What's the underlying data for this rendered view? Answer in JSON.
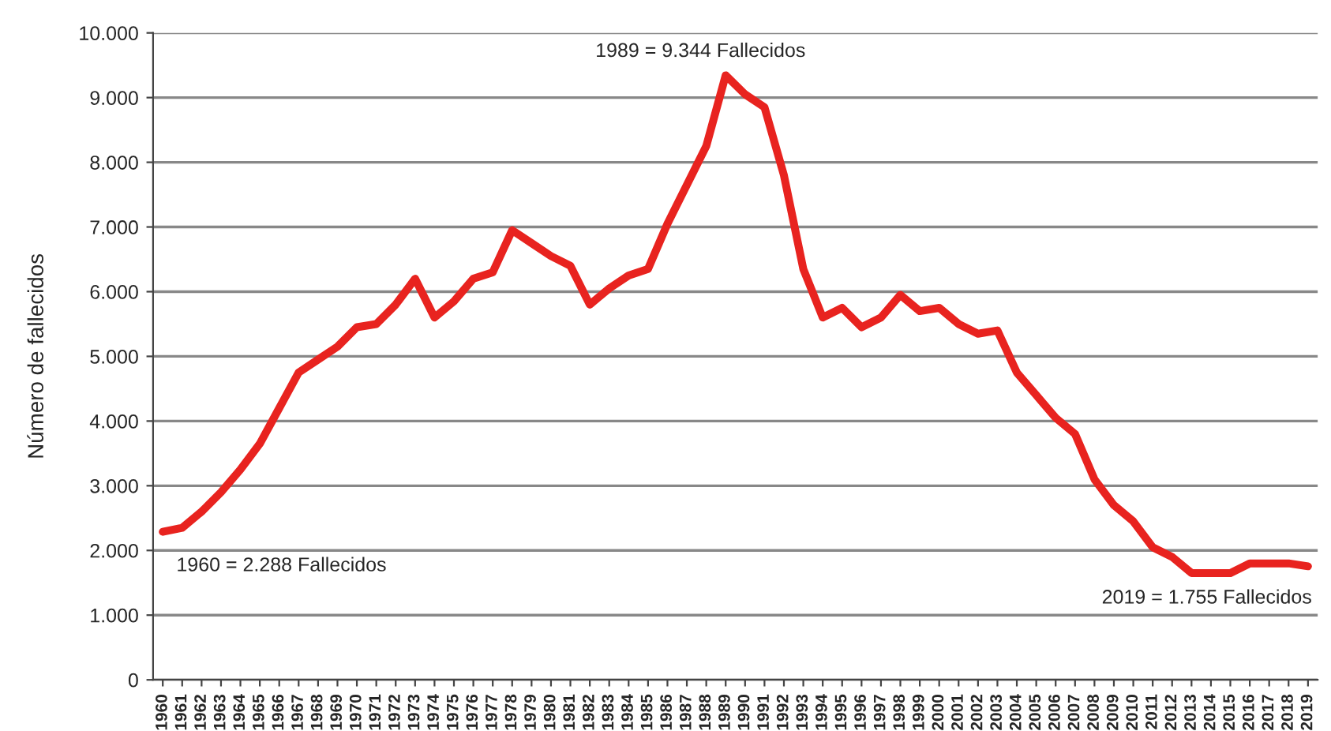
{
  "chart_data": {
    "type": "line",
    "ylabel": "Número de fallecidos",
    "categories": [
      "1960",
      "1961",
      "1962",
      "1963",
      "1964",
      "1965",
      "1966",
      "1967",
      "1968",
      "1969",
      "1970",
      "1971",
      "1972",
      "1973",
      "1974",
      "1975",
      "1976",
      "1977",
      "1978",
      "1979",
      "1980",
      "1981",
      "1982",
      "1983",
      "1984",
      "1985",
      "1986",
      "1987",
      "1988",
      "1989",
      "1990",
      "1991",
      "1992",
      "1993",
      "1994",
      "1995",
      "1996",
      "1997",
      "1998",
      "1999",
      "2000",
      "2001",
      "2002",
      "2003",
      "2004",
      "2005",
      "2006",
      "2007",
      "2008",
      "2009",
      "2010",
      "2011",
      "2012",
      "2013",
      "2014",
      "2015",
      "2016",
      "2017",
      "2018",
      "2019"
    ],
    "series": [
      {
        "color": "#e8231f",
        "values": [
          2288,
          2350,
          2600,
          2900,
          3250,
          3650,
          4200,
          4750,
          4950,
          5150,
          5450,
          5500,
          5800,
          6200,
          5600,
          5850,
          6200,
          6300,
          6950,
          6750,
          6550,
          6400,
          5800,
          6050,
          6250,
          6350,
          7050,
          7650,
          8250,
          9344,
          9050,
          8850,
          7800,
          6350,
          5600,
          5750,
          5450,
          5600,
          5950,
          5700,
          5750,
          5500,
          5350,
          5400,
          4750,
          4400,
          4050,
          3800,
          3100,
          2700,
          2450,
          2050,
          1900,
          1650,
          1650,
          1650,
          1800,
          1800,
          1800,
          1755
        ]
      }
    ],
    "ylim": [
      0,
      10000
    ],
    "yticks": [
      0,
      {
        "value": 1000,
        "label": "1.000"
      },
      {
        "value": 2000,
        "label": "2.000"
      },
      {
        "value": 3000,
        "label": "3.000"
      },
      {
        "value": 4000,
        "label": "4.000"
      },
      {
        "value": 5000,
        "label": "5.000"
      },
      {
        "value": 6000,
        "label": "6.000"
      },
      {
        "value": 7000,
        "label": "7.000"
      },
      {
        "value": 8000,
        "label": "8.000"
      },
      {
        "value": 9000,
        "label": "9.000"
      },
      {
        "value": 10000,
        "label": "10.000"
      }
    ],
    "grid": "y",
    "marker": "none",
    "line_style": "solid",
    "annotations": [
      "1960 = 2.288 Fallecidos",
      "1989 = 9.344 Fallecidos",
      "2019 = 1.755 Fallecidos"
    ]
  }
}
